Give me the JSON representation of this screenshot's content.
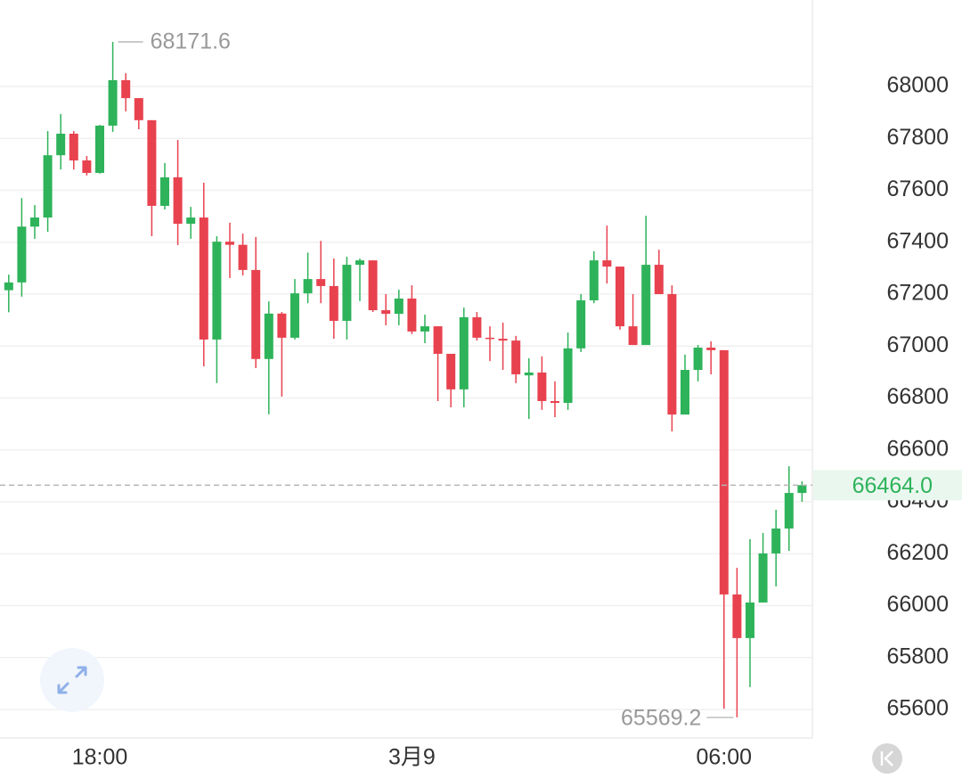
{
  "chart_data": {
    "type": "candlestick",
    "up_color": "#2eb35a",
    "down_color": "#e8424f",
    "categories": [
      null,
      null,
      null,
      null,
      null,
      null,
      null,
      "18:00",
      null,
      null,
      null,
      null,
      null,
      null,
      null,
      null,
      null,
      null,
      null,
      null,
      null,
      null,
      null,
      null,
      null,
      null,
      null,
      null,
      null,
      null,
      null,
      "3月9",
      null,
      null,
      null,
      null,
      null,
      null,
      null,
      null,
      null,
      null,
      null,
      null,
      null,
      null,
      null,
      null,
      null,
      null,
      null,
      null,
      null,
      null,
      null,
      "06:00",
      null,
      null,
      null,
      null,
      null,
      null
    ],
    "open": [
      67215,
      67245,
      67460,
      67495,
      67735,
      67818,
      67715,
      67667,
      67849,
      68024,
      67955,
      67870,
      67540,
      67650,
      67471,
      67495,
      67025,
      67402,
      67390,
      67293,
      66950,
      67125,
      67032,
      67203,
      67258,
      67231,
      67097,
      67313,
      67330,
      67138,
      67124,
      67183,
      67056,
      67076,
      66970,
      66833,
      67111,
      67032,
      67028,
      67021,
      66887,
      66898,
      66788,
      66781,
      66991,
      67176,
      67330,
      67306,
      67076,
      67004,
      67313,
      67200,
      66736,
      66908,
      66994,
      66984,
      66043,
      65875,
      66012,
      66201,
      66297,
      66434
    ],
    "high": [
      67275,
      67570,
      67543,
      67828,
      67894,
      67828,
      67732,
      67852,
      68171.6,
      68051,
      67955,
      67870,
      67705,
      67794,
      67536,
      67629,
      67423,
      67475,
      67433,
      67420,
      67172,
      67131,
      67258,
      67360,
      67405,
      67337,
      67344,
      67337,
      67330,
      67200,
      67217,
      67234,
      67121,
      67076,
      66970,
      67148,
      67131,
      67076,
      67090,
      67039,
      66953,
      66960,
      66864,
      67052,
      67200,
      67365,
      67464,
      67306,
      67200,
      67502,
      67371,
      67234,
      66967,
      67004,
      67018,
      66984,
      66146,
      66256,
      66280,
      66369,
      66537,
      66479
    ],
    "low": [
      67130,
      67190,
      67413,
      67440,
      67680,
      67680,
      67657,
      67664,
      67825,
      67904,
      67835,
      67423,
      67526,
      67389,
      67413,
      66922,
      66857,
      67262,
      67272,
      66915,
      66737,
      66805,
      67025,
      67165,
      67165,
      67028,
      67025,
      67173,
      67131,
      67080,
      67080,
      67046,
      67011,
      66788,
      66764,
      66764,
      67021,
      66942,
      66908,
      66857,
      66719,
      66754,
      66726,
      66754,
      66977,
      67165,
      67241,
      67063,
      67004,
      67004,
      67200,
      66671,
      66736,
      66864,
      66891,
      65603,
      65569.2,
      65686,
      66012,
      66074,
      66211,
      66400
    ],
    "close": [
      67245,
      67460,
      67495,
      67735,
      67818,
      67715,
      67667,
      67849,
      68024,
      67955,
      67870,
      67540,
      67650,
      67471,
      67495,
      67025,
      67402,
      67390,
      67293,
      66950,
      67125,
      67032,
      67203,
      67258,
      67231,
      67097,
      67313,
      67330,
      67138,
      67124,
      67183,
      67056,
      67076,
      66970,
      66833,
      67111,
      67032,
      67028,
      67021,
      66891,
      66898,
      66788,
      66781,
      66991,
      67176,
      67330,
      67306,
      67076,
      67004,
      67313,
      67200,
      66736,
      66908,
      66994,
      66984,
      66043,
      65875,
      66012,
      66201,
      66297,
      66434,
      66464
    ],
    "ylim": [
      65490,
      68333
    ],
    "yticks": [
      65600,
      65800,
      66000,
      66200,
      66400,
      66600,
      66800,
      67000,
      67200,
      67400,
      67600,
      67800,
      68000
    ],
    "grid": true,
    "high_marker": 68171.6,
    "low_marker": 65569.2,
    "last_price": {
      "value": 66464,
      "label": "66464.0"
    }
  }
}
